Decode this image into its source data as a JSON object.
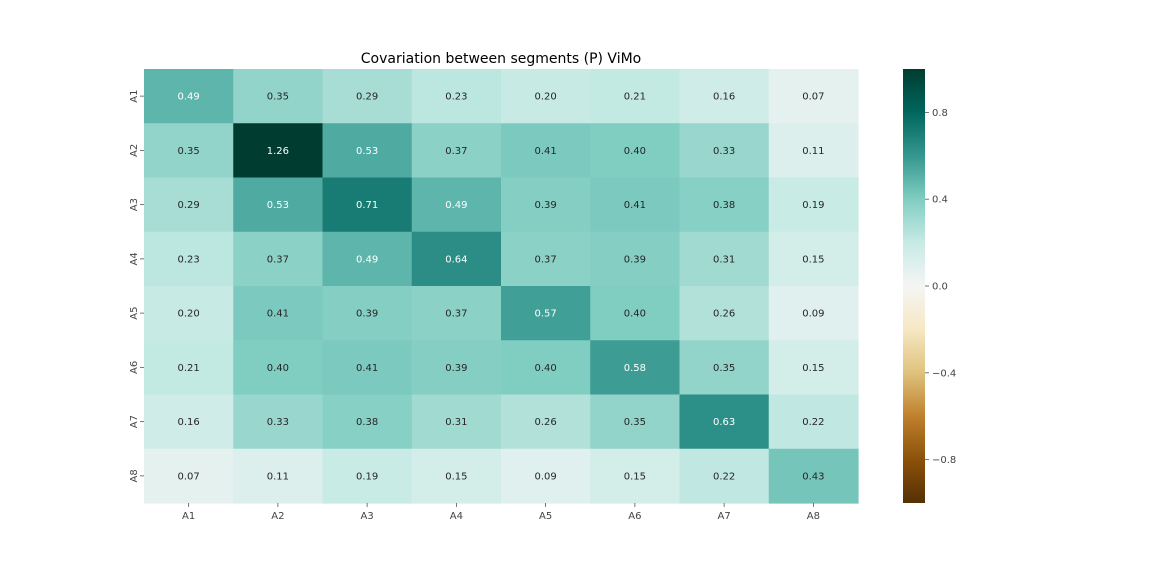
{
  "chart_data": {
    "type": "heatmap",
    "title": "Covariation between segments  (P) ViMo",
    "x_labels": [
      "A1",
      "A2",
      "A3",
      "A4",
      "A5",
      "A6",
      "A7",
      "A8"
    ],
    "y_labels": [
      "A1",
      "A2",
      "A3",
      "A4",
      "A5",
      "A6",
      "A7",
      "A8"
    ],
    "values": [
      [
        0.49,
        0.35,
        0.29,
        0.23,
        0.2,
        0.21,
        0.16,
        0.07
      ],
      [
        0.35,
        1.26,
        0.53,
        0.37,
        0.41,
        0.4,
        0.33,
        0.11
      ],
      [
        0.29,
        0.53,
        0.71,
        0.49,
        0.39,
        0.41,
        0.38,
        0.19
      ],
      [
        0.23,
        0.37,
        0.49,
        0.64,
        0.37,
        0.39,
        0.31,
        0.15
      ],
      [
        0.2,
        0.41,
        0.39,
        0.37,
        0.57,
        0.4,
        0.26,
        0.09
      ],
      [
        0.21,
        0.4,
        0.41,
        0.39,
        0.4,
        0.58,
        0.35,
        0.15
      ],
      [
        0.16,
        0.33,
        0.38,
        0.31,
        0.26,
        0.35,
        0.63,
        0.22
      ],
      [
        0.07,
        0.11,
        0.19,
        0.15,
        0.09,
        0.15,
        0.22,
        0.43
      ]
    ],
    "colormap": "BrBG",
    "vmin": -1.0,
    "vmax": 1.0,
    "colorbar_ticks": [
      0.8,
      0.4,
      0.0,
      -0.4,
      -0.8
    ],
    "colorbar_tick_labels": [
      "0.8",
      "0.4",
      "0.0",
      "−0.4",
      "−0.8"
    ]
  }
}
